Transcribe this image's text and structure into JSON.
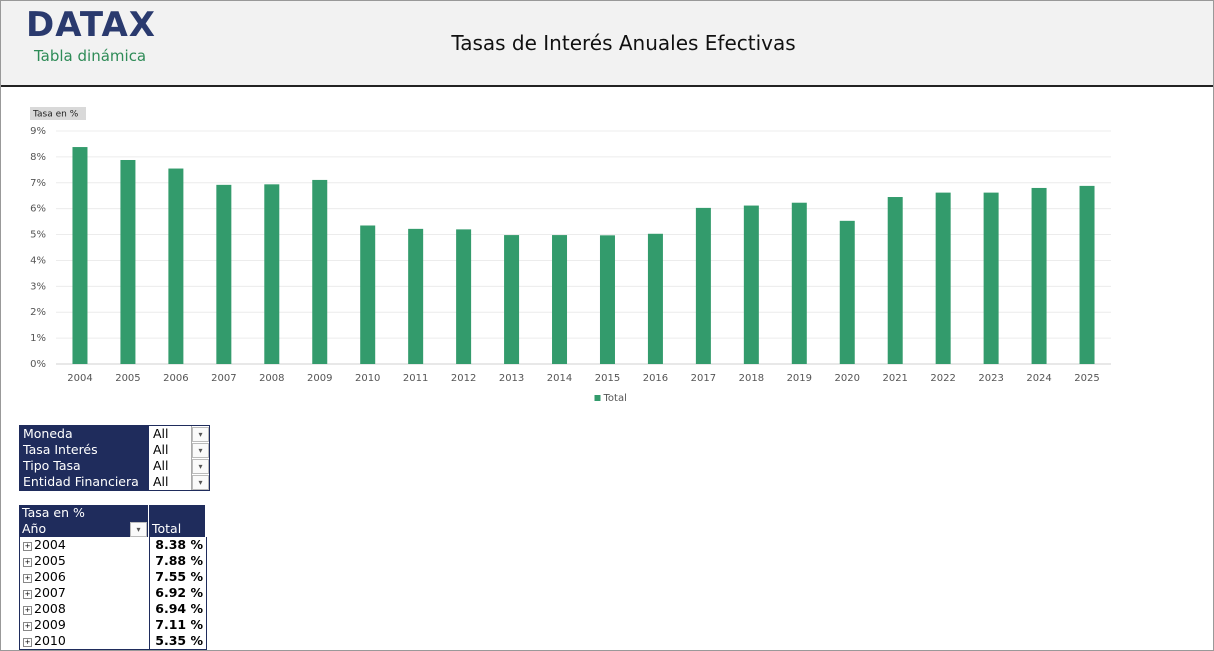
{
  "header": {
    "logo": "DATAX",
    "subtitle": "Tabla dinámica",
    "title": "Tasas de Interés Anuales Efectivas"
  },
  "chart_data": {
    "type": "bar",
    "ylabel": "Tasa en %",
    "categories": [
      "2004",
      "2005",
      "2006",
      "2007",
      "2008",
      "2009",
      "2010",
      "2011",
      "2012",
      "2013",
      "2014",
      "2015",
      "2016",
      "2017",
      "2018",
      "2019",
      "2020",
      "2021",
      "2022",
      "2023",
      "2024",
      "2025"
    ],
    "series": [
      {
        "name": "Total",
        "color": "#339b6c",
        "values": [
          8.38,
          7.88,
          7.55,
          6.92,
          6.94,
          7.11,
          5.35,
          5.22,
          5.2,
          4.98,
          4.98,
          4.97,
          5.03,
          6.03,
          6.12,
          6.23,
          5.53,
          6.45,
          6.62,
          6.62,
          6.8,
          6.88
        ]
      }
    ],
    "ylim": [
      0,
      9
    ],
    "yticks": [
      {
        "value": 0,
        "label": "0%"
      },
      {
        "value": 1,
        "label": "1%"
      },
      {
        "value": 2,
        "label": "2%"
      },
      {
        "value": 3,
        "label": "3%"
      },
      {
        "value": 4,
        "label": "4%"
      },
      {
        "value": 5,
        "label": "5%"
      },
      {
        "value": 6,
        "label": "6%"
      },
      {
        "value": 7,
        "label": "7%"
      },
      {
        "value": 8,
        "label": "8%"
      },
      {
        "value": 9,
        "label": "9%"
      }
    ],
    "grid": true,
    "legend": "bottom"
  },
  "filters": [
    {
      "label": "Moneda",
      "value": "All"
    },
    {
      "label": "Tasa Interés",
      "value": "All"
    },
    {
      "label": "Tipo Tasa",
      "value": "All"
    },
    {
      "label": "Entidad Financiera",
      "value": "All"
    }
  ],
  "pivot": {
    "title": "Tasa en %",
    "headers": [
      "Año",
      "Total"
    ],
    "rows": [
      [
        "2004",
        "8.38 %"
      ],
      [
        "2005",
        "7.88 %"
      ],
      [
        "2006",
        "7.55 %"
      ],
      [
        "2007",
        "6.92 %"
      ],
      [
        "2008",
        "6.94 %"
      ],
      [
        "2009",
        "7.11 %"
      ],
      [
        "2010",
        "5.35 %"
      ]
    ]
  }
}
